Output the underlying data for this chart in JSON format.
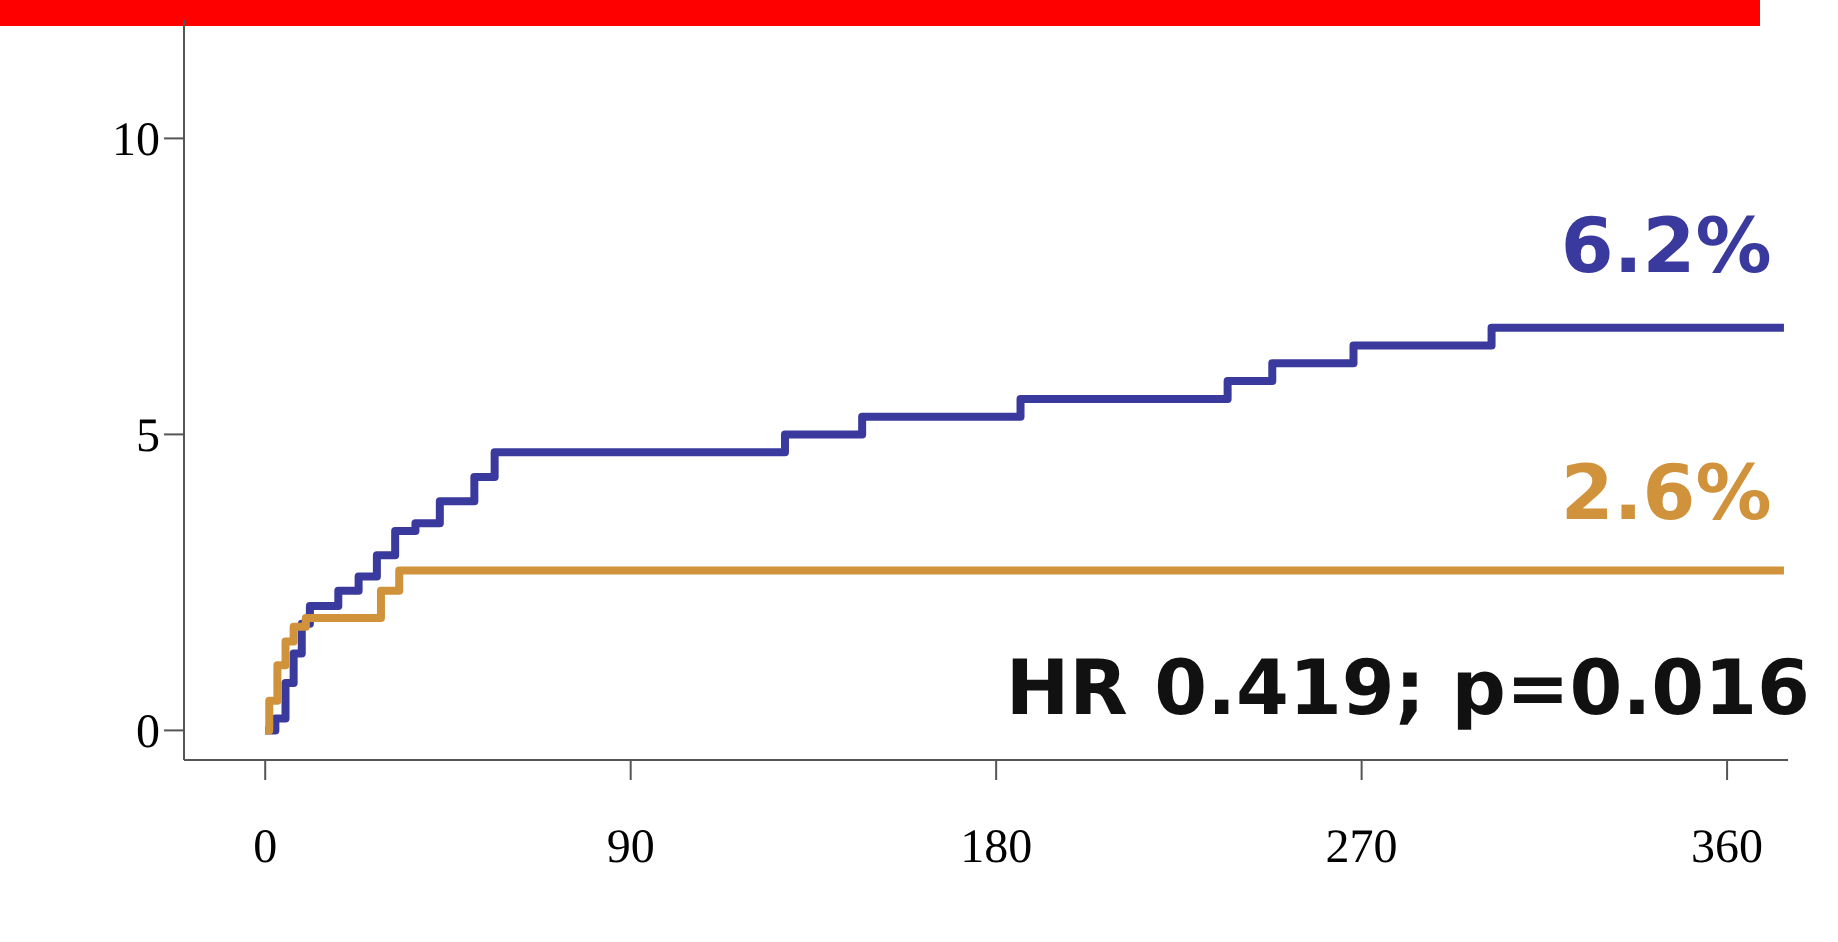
{
  "chart_data": {
    "type": "step",
    "series": [
      {
        "color": "#3a3a9e",
        "x": [
          0,
          2.5,
          5,
          7,
          9,
          11,
          18,
          23,
          27.5,
          32,
          37,
          43,
          51.5,
          56.5,
          128,
          147,
          186,
          237,
          248,
          268,
          302,
          374
        ],
        "values": [
          0,
          0.2,
          0.8,
          1.3,
          1.8,
          2.1,
          2.36,
          2.6,
          2.96,
          3.37,
          3.5,
          3.87,
          4.28,
          4.7,
          5.0,
          5.3,
          5.6,
          5.9,
          6.2,
          6.5,
          6.8,
          6.8
        ]
      },
      {
        "color": "#d0923a",
        "x": [
          0,
          1,
          3,
          5,
          7,
          10,
          28.5,
          33,
          374
        ],
        "values": [
          0,
          0.5,
          1.1,
          1.5,
          1.75,
          1.9,
          2.36,
          2.7,
          2.7
        ]
      }
    ],
    "annotations": [
      {
        "text": "6.2%",
        "x": 345,
        "y": 6.8
      },
      {
        "text": "2.6%",
        "x": 345,
        "y": 2.7
      },
      "HR 0.419; p=0.016"
    ],
    "xlim": [
      -20,
      375
    ],
    "xticks": [
      0,
      90,
      180,
      270,
      360
    ],
    "ylim": [
      -0.5,
      12
    ],
    "yticks": [
      0,
      5,
      10
    ],
    "grid": false,
    "legend": false,
    "line_style": "solid",
    "marker": "none"
  }
}
